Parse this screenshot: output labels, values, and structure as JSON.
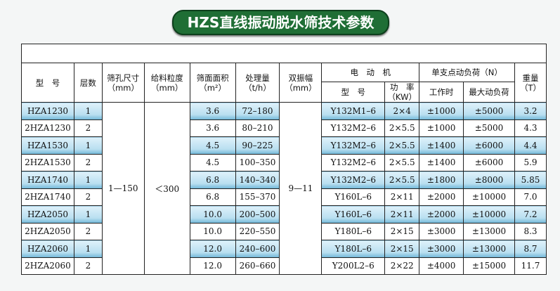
{
  "title": "HZS直线振动脱水筛技术参数",
  "headers": {
    "model": "型　号",
    "layers": "层数",
    "aperture": "筛孔尺寸",
    "aperture_unit": "（mm）",
    "feed_size": "给料粒度",
    "feed_size_unit": "（mm）",
    "area": "筛面面积",
    "area_unit": "（m²）",
    "capacity": "处理量",
    "capacity_unit": "（t/h）",
    "amplitude": "双振幅",
    "amplitude_unit": "（mm）",
    "motor": "电　动　机",
    "motor_model": "型　号",
    "motor_power": "功　率",
    "motor_power_unit": "（KW）",
    "load": "单支点动负荷（N）",
    "load_work": "工作时",
    "load_max": "最大动负荷",
    "weight": "重量",
    "weight_unit": "（T）"
  },
  "shared": {
    "aperture": "1—150",
    "feed_size": "＜300",
    "amplitude": "9—11"
  },
  "rows": [
    {
      "model": "HZA1230",
      "layers": "1",
      "area": "3.6",
      "capacity": "72–180",
      "motor": "Y132M1–6",
      "power": "2×4",
      "work": "±1000",
      "max": "±5000",
      "weight": "3.2"
    },
    {
      "model": "2HZA1230",
      "layers": "2",
      "area": "3.6",
      "capacity": "80–210",
      "motor": "Y132M2–6",
      "power": "2×5.5",
      "work": "±1000",
      "max": "±5000",
      "weight": "4.3"
    },
    {
      "model": "HZA1530",
      "layers": "1",
      "area": "4.5",
      "capacity": "90–225",
      "motor": "Y132M2–6",
      "power": "2×5.5",
      "work": "±1400",
      "max": "±6000",
      "weight": "4.4"
    },
    {
      "model": "2HZA1530",
      "layers": "2",
      "area": "4.5",
      "capacity": "100–350",
      "motor": "Y132M2–6",
      "power": "2×5.5",
      "work": "±1400",
      "max": "±6000",
      "weight": "5.9"
    },
    {
      "model": "HZA1740",
      "layers": "1",
      "area": "6.8",
      "capacity": "140–340",
      "motor": "Y132M2–6",
      "power": "2×5.5",
      "work": "±1800",
      "max": "±8000",
      "weight": "5.85"
    },
    {
      "model": "2HZA1740",
      "layers": "2",
      "area": "6.8",
      "capacity": "155–370",
      "motor": "Y160L–6",
      "power": "2×11",
      "work": "±2000",
      "max": "±10000",
      "weight": "7.0"
    },
    {
      "model": "HZA2050",
      "layers": "1",
      "area": "10.0",
      "capacity": "200–500",
      "motor": "Y160L–6",
      "power": "2×11",
      "work": "±2000",
      "max": "±10000",
      "weight": "7.2"
    },
    {
      "model": "2HZA2050",
      "layers": "2",
      "area": "10.0",
      "capacity": "220–550",
      "motor": "Y180L–6",
      "power": "2×15",
      "work": "±3000",
      "max": "±13000",
      "weight": "8.3"
    },
    {
      "model": "HZA2060",
      "layers": "1",
      "area": "12.0",
      "capacity": "240–600",
      "motor": "Y180L–6",
      "power": "2×15",
      "work": "±3000",
      "max": "±13000",
      "weight": "8.7"
    },
    {
      "model": "2HZA2060",
      "layers": "2",
      "area": "12.0",
      "capacity": "260–660",
      "motor": "Y200L2–6",
      "power": "2×22",
      "work": "±4000",
      "max": "±15000",
      "weight": "11.7"
    }
  ]
}
